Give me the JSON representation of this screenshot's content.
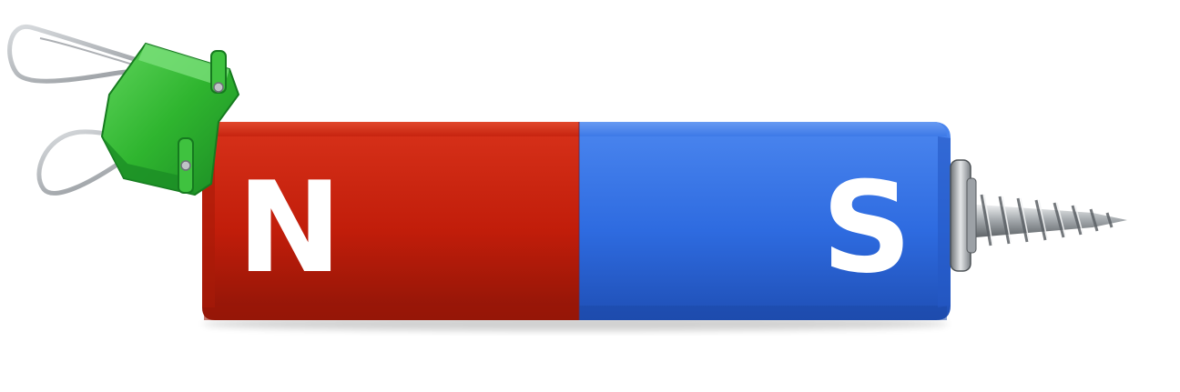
{
  "magnet": {
    "north_label": "N",
    "south_label": "S",
    "north_color": "#c41e0c",
    "south_color": "#2f6ee0"
  },
  "clip": {
    "color": "#2fb52f",
    "icon": "binder-clip-icon"
  },
  "screw": {
    "icon": "screw-icon"
  }
}
